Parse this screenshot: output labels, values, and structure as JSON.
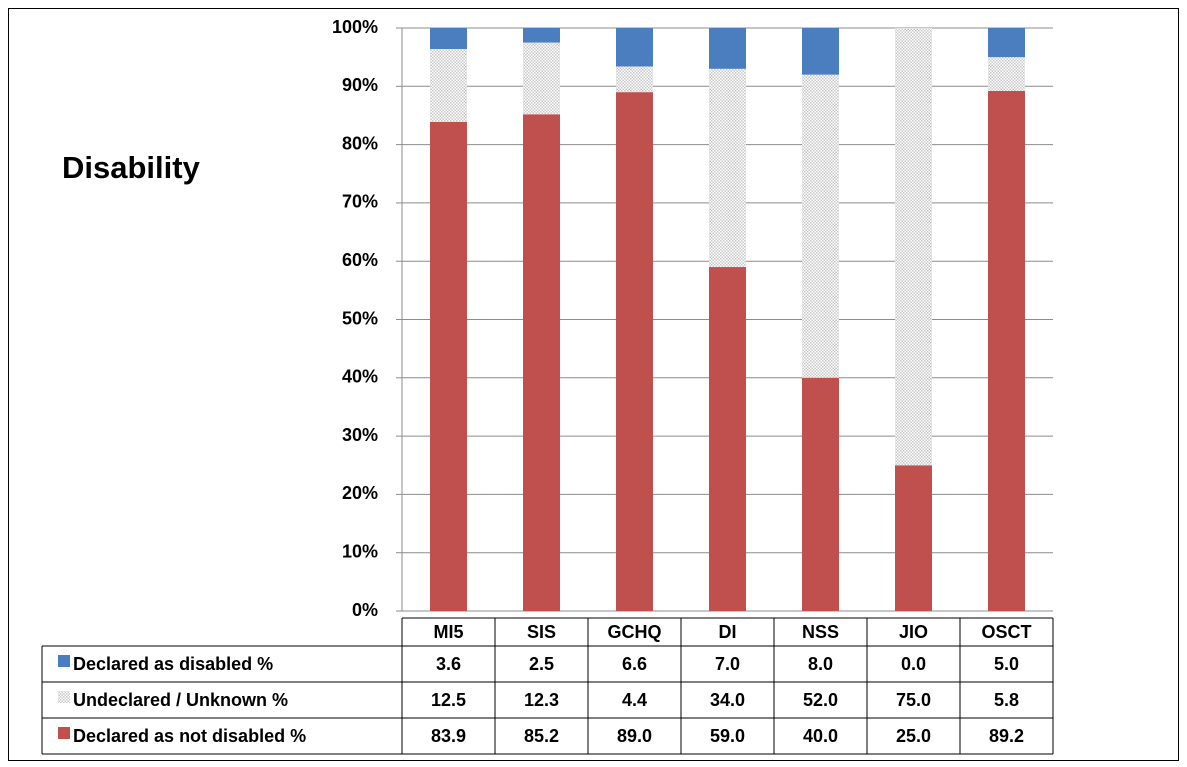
{
  "chart_data": {
    "type": "stacked_bar",
    "title": "Disability",
    "categories": [
      "MI5",
      "SIS",
      "GCHQ",
      "DI",
      "NSS",
      "JIO",
      "OSCT"
    ],
    "series": [
      {
        "name": "Declared as disabled %",
        "color": "#4a7ebf",
        "values": [
          3.6,
          2.5,
          6.6,
          7.0,
          8.0,
          0.0,
          5.0
        ],
        "value_labels": [
          "3.6",
          "2.5",
          "6.6",
          "7.0",
          "8.0",
          "0.0",
          "5.0"
        ]
      },
      {
        "name": "Undeclared / Unknown %",
        "color": "#c8c8c8",
        "values": [
          12.5,
          12.3,
          4.4,
          34.0,
          52.0,
          75.0,
          5.8
        ],
        "value_labels": [
          "12.5",
          "12.3",
          "4.4",
          "34.0",
          "52.0",
          "75.0",
          "5.8"
        ]
      },
      {
        "name": "Declared as not disabled %",
        "color": "#c0504d",
        "values": [
          83.9,
          85.2,
          89.0,
          59.0,
          40.0,
          25.0,
          89.2
        ],
        "value_labels": [
          "83.9",
          "85.2",
          "89.0",
          "59.0",
          "40.0",
          "25.0",
          "89.2"
        ]
      }
    ],
    "ylim": [
      0,
      100
    ],
    "yticks": [
      {
        "value": 0,
        "label": "0%"
      },
      {
        "value": 10,
        "label": "10%"
      },
      {
        "value": 20,
        "label": "20%"
      },
      {
        "value": 30,
        "label": "30%"
      },
      {
        "value": 40,
        "label": "40%"
      },
      {
        "value": 50,
        "label": "50%"
      },
      {
        "value": 60,
        "label": "60%"
      },
      {
        "value": 70,
        "label": "70%"
      },
      {
        "value": 80,
        "label": "80%"
      },
      {
        "value": 90,
        "label": "90%"
      },
      {
        "value": 100,
        "label": "100%"
      }
    ],
    "grid": true
  }
}
